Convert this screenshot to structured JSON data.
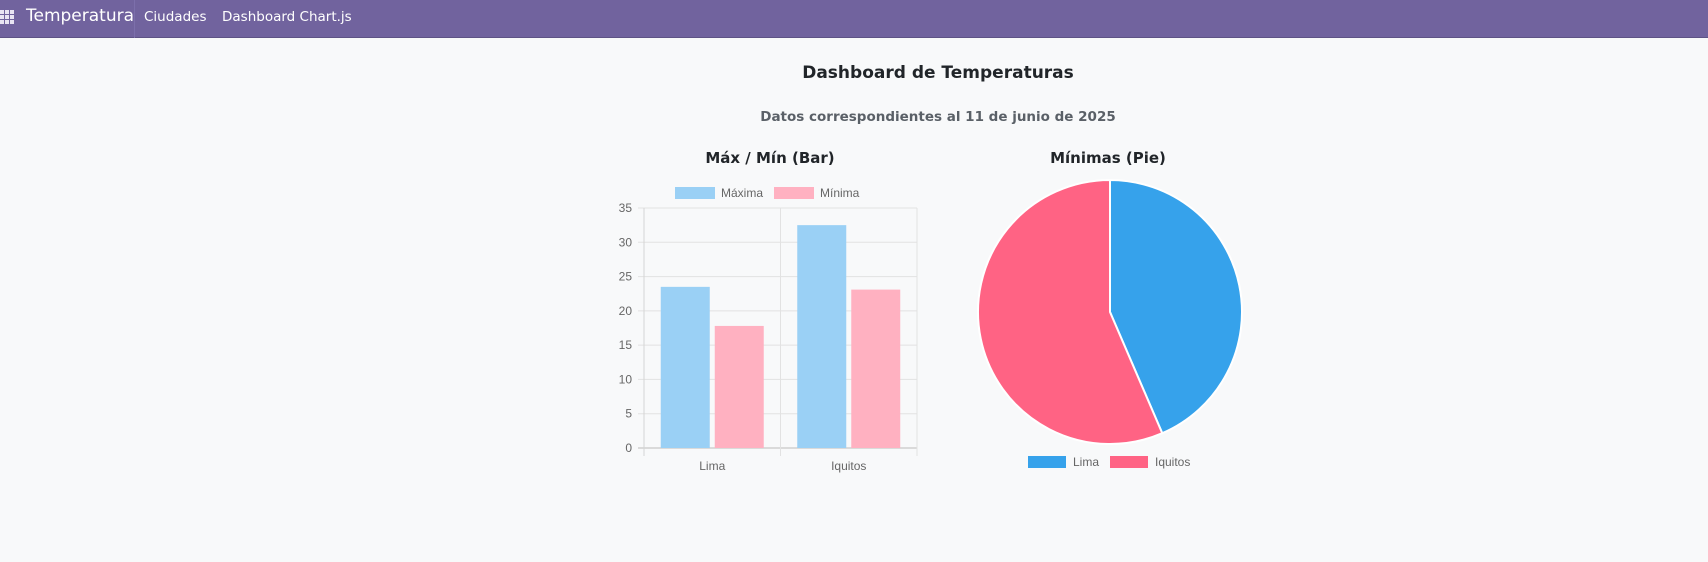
{
  "navbar": {
    "app_name": "Temperatura",
    "items": [
      {
        "label": "Ciudades"
      },
      {
        "label": "Dashboard Chart.js"
      }
    ],
    "bg_color": "#71639e"
  },
  "main": {
    "title": "Dashboard de Temperaturas",
    "subtitle": "Datos correspondientes al 11 de junio de 2025"
  },
  "chart_data": [
    {
      "type": "bar",
      "title": "Máx / Mín (Bar)",
      "categories": [
        "Lima",
        "Iquitos"
      ],
      "series": [
        {
          "name": "Máxima",
          "values": [
            23.5,
            32.5
          ],
          "color": "#9ad0f5"
        },
        {
          "name": "Mínima",
          "values": [
            17.8,
            23.1
          ],
          "color": "#ffb1c1"
        }
      ],
      "ylim": [
        0,
        35
      ],
      "yticks": [
        0,
        5,
        10,
        15,
        20,
        25,
        30,
        35
      ],
      "grid": true,
      "legend": "top"
    },
    {
      "type": "pie",
      "title": "Mínimas (Pie)",
      "labels": [
        "Lima",
        "Iquitos"
      ],
      "values": [
        17.8,
        23.1
      ],
      "colors": [
        "#36a2eb",
        "#ff6384"
      ],
      "legend": "bottom"
    }
  ]
}
